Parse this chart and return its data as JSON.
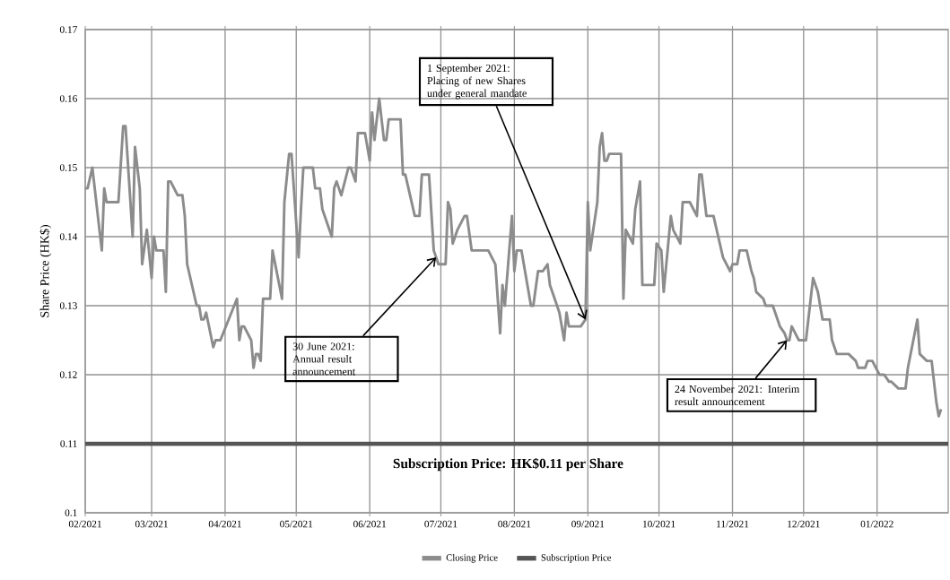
{
  "chart_data": {
    "type": "line",
    "ylabel": "Share Price (HK$)",
    "x": [
      "2021-02-01",
      "2021-02-02",
      "2021-02-04",
      "2021-02-08",
      "2021-02-09",
      "2021-02-10",
      "2021-02-15",
      "2021-02-17",
      "2021-02-18",
      "2021-02-21",
      "2021-02-22",
      "2021-02-23",
      "2021-02-24",
      "2021-02-25",
      "2021-02-27",
      "2021-03-01",
      "2021-03-02",
      "2021-03-03",
      "2021-03-06",
      "2021-03-07",
      "2021-03-08",
      "2021-03-09",
      "2021-03-12",
      "2021-03-14",
      "2021-03-15",
      "2021-03-16",
      "2021-03-20",
      "2021-03-21",
      "2021-03-22",
      "2021-03-23",
      "2021-03-24",
      "2021-03-27",
      "2021-03-28",
      "2021-03-30",
      "2021-04-06",
      "2021-04-07",
      "2021-04-08",
      "2021-04-09",
      "2021-04-12",
      "2021-04-13",
      "2021-04-14",
      "2021-04-15",
      "2021-04-16",
      "2021-04-17",
      "2021-04-20",
      "2021-04-21",
      "2021-04-25",
      "2021-04-26",
      "2021-04-28",
      "2021-04-29",
      "2021-05-02",
      "2021-05-03",
      "2021-05-04",
      "2021-05-08",
      "2021-05-09",
      "2021-05-11",
      "2021-05-12",
      "2021-05-16",
      "2021-05-17",
      "2021-05-18",
      "2021-05-20",
      "2021-05-23",
      "2021-05-24",
      "2021-05-26",
      "2021-05-27",
      "2021-05-30",
      "2021-06-01",
      "2021-06-02",
      "2021-06-03",
      "2021-06-05",
      "2021-06-07",
      "2021-06-08",
      "2021-06-09",
      "2021-06-14",
      "2021-06-15",
      "2021-06-16",
      "2021-06-20",
      "2021-06-22",
      "2021-06-23",
      "2021-06-26",
      "2021-06-28",
      "2021-06-30",
      "2021-07-03",
      "2021-07-04",
      "2021-07-05",
      "2021-07-06",
      "2021-07-08",
      "2021-07-11",
      "2021-07-12",
      "2021-07-14",
      "2021-07-21",
      "2021-07-24",
      "2021-07-26",
      "2021-07-27",
      "2021-07-28",
      "2021-07-31",
      "2021-08-01",
      "2021-08-02",
      "2021-08-04",
      "2021-08-08",
      "2021-08-09",
      "2021-08-11",
      "2021-08-13",
      "2021-08-15",
      "2021-08-16",
      "2021-08-17",
      "2021-08-20",
      "2021-08-22",
      "2021-08-23",
      "2021-08-24",
      "2021-08-29",
      "2021-08-31",
      "2021-09-01",
      "2021-09-02",
      "2021-09-05",
      "2021-09-06",
      "2021-09-07",
      "2021-09-08",
      "2021-09-09",
      "2021-09-10",
      "2021-09-15",
      "2021-09-16",
      "2021-09-17",
      "2021-09-20",
      "2021-09-21",
      "2021-09-23",
      "2021-09-24",
      "2021-09-29",
      "2021-09-30",
      "2021-10-02",
      "2021-10-03",
      "2021-10-06",
      "2021-10-07",
      "2021-10-10",
      "2021-10-11",
      "2021-10-14",
      "2021-10-17",
      "2021-10-18",
      "2021-10-19",
      "2021-10-21",
      "2021-10-24",
      "2021-10-26",
      "2021-10-28",
      "2021-10-31",
      "2021-11-01",
      "2021-11-03",
      "2021-11-04",
      "2021-11-07",
      "2021-11-09",
      "2021-11-10",
      "2021-11-11",
      "2021-11-14",
      "2021-11-15",
      "2021-11-18",
      "2021-11-21",
      "2021-11-23",
      "2021-11-24",
      "2021-11-25",
      "2021-11-26",
      "2021-11-29",
      "2021-12-02",
      "2021-12-05",
      "2021-12-07",
      "2021-12-09",
      "2021-12-12",
      "2021-12-13",
      "2021-12-15",
      "2021-12-20",
      "2021-12-23",
      "2021-12-24",
      "2021-12-27",
      "2021-12-28",
      "2021-12-30",
      "2022-01-02",
      "2022-01-04",
      "2022-01-06",
      "2022-01-07",
      "2022-01-10",
      "2022-01-13",
      "2022-01-14",
      "2022-01-18",
      "2022-01-19",
      "2022-01-22",
      "2022-01-24",
      "2022-01-26",
      "2022-01-27",
      "2022-01-28"
    ],
    "series": [
      {
        "name": "Closing Price",
        "color": "#8c8c8c",
        "values": [
          0.147,
          0.147,
          0.15,
          0.138,
          0.147,
          0.145,
          0.145,
          0.156,
          0.156,
          0.14,
          0.153,
          0.15,
          0.147,
          0.136,
          0.141,
          0.134,
          0.14,
          0.138,
          0.138,
          0.132,
          0.148,
          0.148,
          0.146,
          0.146,
          0.143,
          0.136,
          0.13,
          0.13,
          0.128,
          0.128,
          0.129,
          0.124,
          0.125,
          0.125,
          0.131,
          0.125,
          0.127,
          0.127,
          0.125,
          0.121,
          0.123,
          0.123,
          0.122,
          0.131,
          0.131,
          0.138,
          0.131,
          0.145,
          0.152,
          0.152,
          0.137,
          0.144,
          0.15,
          0.15,
          0.147,
          0.147,
          0.144,
          0.14,
          0.147,
          0.148,
          0.146,
          0.15,
          0.15,
          0.148,
          0.155,
          0.155,
          0.151,
          0.158,
          0.154,
          0.16,
          0.154,
          0.154,
          0.157,
          0.157,
          0.149,
          0.149,
          0.143,
          0.143,
          0.149,
          0.149,
          0.138,
          0.136,
          0.136,
          0.145,
          0.144,
          0.139,
          0.141,
          0.143,
          0.143,
          0.138,
          0.138,
          0.136,
          0.126,
          0.133,
          0.13,
          0.143,
          0.135,
          0.138,
          0.138,
          0.13,
          0.13,
          0.135,
          0.135,
          0.136,
          0.133,
          0.132,
          0.129,
          0.125,
          0.129,
          0.127,
          0.127,
          0.128,
          0.145,
          0.138,
          0.145,
          0.153,
          0.155,
          0.151,
          0.151,
          0.152,
          0.152,
          0.131,
          0.141,
          0.139,
          0.144,
          0.148,
          0.133,
          0.133,
          0.139,
          0.138,
          0.132,
          0.143,
          0.141,
          0.139,
          0.145,
          0.145,
          0.143,
          0.149,
          0.149,
          0.143,
          0.143,
          0.14,
          0.137,
          0.135,
          0.136,
          0.136,
          0.138,
          0.138,
          0.135,
          0.134,
          0.132,
          0.131,
          0.13,
          0.13,
          0.127,
          0.126,
          0.125,
          0.125,
          0.127,
          0.125,
          0.125,
          0.134,
          0.132,
          0.128,
          0.128,
          0.125,
          0.123,
          0.123,
          0.122,
          0.121,
          0.121,
          0.122,
          0.122,
          0.12,
          0.12,
          0.119,
          0.119,
          0.118,
          0.118,
          0.121,
          0.128,
          0.123,
          0.122,
          0.122,
          0.116,
          0.114,
          0.115
        ]
      },
      {
        "name": "Subscription Price",
        "color": "#555555",
        "x": [
          "2021-02-01",
          "2022-01-31"
        ],
        "values": [
          0.11,
          0.11
        ]
      }
    ],
    "xlim": [
      "2021-02-01",
      "2022-01-31"
    ],
    "xticks": [
      {
        "value": "2021-02",
        "label": "02/2021"
      },
      {
        "value": "2021-03",
        "label": "03/2021"
      },
      {
        "value": "2021-04",
        "label": "04/2021"
      },
      {
        "value": "2021-05",
        "label": "05/2021"
      },
      {
        "value": "2021-06",
        "label": "06/2021"
      },
      {
        "value": "2021-07",
        "label": "07/2021"
      },
      {
        "value": "2021-08",
        "label": "08/2021"
      },
      {
        "value": "2021-09",
        "label": "09/2021"
      },
      {
        "value": "2021-10",
        "label": "10/2021"
      },
      {
        "value": "2021-11",
        "label": "11/2021"
      },
      {
        "value": "2021-12",
        "label": "12/2021"
      },
      {
        "value": "2022-01",
        "label": "01/2022"
      }
    ],
    "ylim": [
      0.1,
      0.17
    ],
    "yticks": [
      0.1,
      0.11,
      0.12,
      0.13,
      0.14,
      0.15,
      0.16,
      0.17
    ],
    "grid": true,
    "legend": "bottom",
    "annotations": [
      {
        "text": "1 September 2021: Placing of new Shares under general mandate",
        "x": "2021-08-31",
        "y": 0.128
      },
      {
        "text": "30 June 2021: Annual result announcement",
        "x": "2021-06-29",
        "y": 0.137
      },
      {
        "text": "24 November 2021: Interim result announcement",
        "x": "2021-11-24",
        "y": 0.125
      },
      "Subscription Price: HK$0.11 per Share"
    ]
  }
}
